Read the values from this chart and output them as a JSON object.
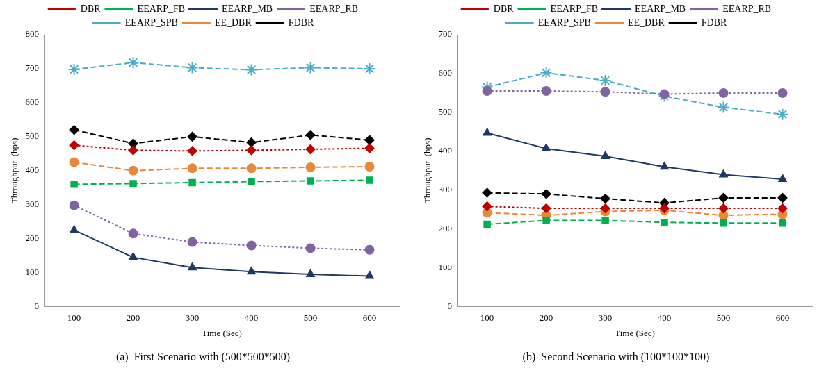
{
  "chart_data": [
    {
      "type": "line",
      "title": "(a)  First Scenario with (500*500*500)",
      "xlabel": "Time (Sec)",
      "ylabel": "Throughput  (bps)",
      "categories": [
        "100",
        "200",
        "300",
        "400",
        "500",
        "600"
      ],
      "ylim": [
        0,
        800
      ],
      "yticks": [
        0,
        100,
        200,
        300,
        400,
        500,
        600,
        700,
        800
      ],
      "grid": false,
      "legend": "top",
      "series": [
        {
          "name": "DBR",
          "color": "#c00000",
          "marker": "diamond",
          "line_style": "dotted",
          "values": [
            475,
            460,
            458,
            460,
            463,
            466
          ]
        },
        {
          "name": "EEARP_FB",
          "color": "#00b050",
          "marker": "square",
          "line_style": "dashed",
          "values": [
            360,
            362,
            365,
            368,
            370,
            372
          ]
        },
        {
          "name": "EEARP_MB",
          "color": "#1f3864",
          "marker": "triangle",
          "line_style": "solid",
          "values": [
            225,
            145,
            115,
            103,
            95,
            90
          ]
        },
        {
          "name": "EEARP_RB",
          "color": "#8064a2",
          "marker": "circle",
          "line_style": "dotted",
          "values": [
            298,
            215,
            190,
            180,
            172,
            167
          ]
        },
        {
          "name": "EEARP_SPB",
          "color": "#4bacc6",
          "marker": "cross",
          "line_style": "dashed",
          "values": [
            698,
            718,
            703,
            697,
            703,
            700
          ]
        },
        {
          "name": "EE_DBR",
          "color": "#e8893a",
          "marker": "circle",
          "line_style": "dashed",
          "values": [
            425,
            400,
            407,
            407,
            410,
            412
          ]
        },
        {
          "name": "FDBR",
          "color": "#000000",
          "marker": "diamond",
          "line_style": "dashed",
          "values": [
            520,
            480,
            500,
            483,
            505,
            490
          ]
        }
      ]
    },
    {
      "type": "line",
      "title": "(b)  Second Scenario with (100*100*100)",
      "xlabel": "Time (Sec)",
      "ylabel": "Throughput  (bps)",
      "categories": [
        "100",
        "200",
        "300",
        "400",
        "500",
        "600"
      ],
      "ylim": [
        0,
        700
      ],
      "yticks": [
        0,
        100,
        200,
        300,
        400,
        500,
        600,
        700
      ],
      "grid": false,
      "legend": "top",
      "series": [
        {
          "name": "DBR",
          "color": "#c00000",
          "marker": "diamond",
          "line_style": "dotted",
          "values": [
            258,
            253,
            253,
            253,
            253,
            253
          ]
        },
        {
          "name": "EEARP_FB",
          "color": "#00b050",
          "marker": "square",
          "line_style": "dashed",
          "values": [
            212,
            222,
            222,
            217,
            215,
            215
          ]
        },
        {
          "name": "EEARP_MB",
          "color": "#1f3864",
          "marker": "triangle",
          "line_style": "solid",
          "values": [
            447,
            407,
            387,
            360,
            340,
            328
          ]
        },
        {
          "name": "EEARP_RB",
          "color": "#8064a2",
          "marker": "circle",
          "line_style": "dotted",
          "values": [
            555,
            555,
            553,
            547,
            550,
            550
          ]
        },
        {
          "name": "EEARP_SPB",
          "color": "#4bacc6",
          "marker": "cross",
          "line_style": "dashed",
          "values": [
            565,
            602,
            582,
            542,
            513,
            495
          ]
        },
        {
          "name": "EE_DBR",
          "color": "#e8893a",
          "marker": "circle",
          "line_style": "dashed",
          "values": [
            242,
            235,
            245,
            248,
            235,
            238
          ]
        },
        {
          "name": "FDBR",
          "color": "#000000",
          "marker": "diamond",
          "line_style": "dashed",
          "values": [
            293,
            290,
            278,
            267,
            280,
            280
          ]
        }
      ]
    }
  ]
}
